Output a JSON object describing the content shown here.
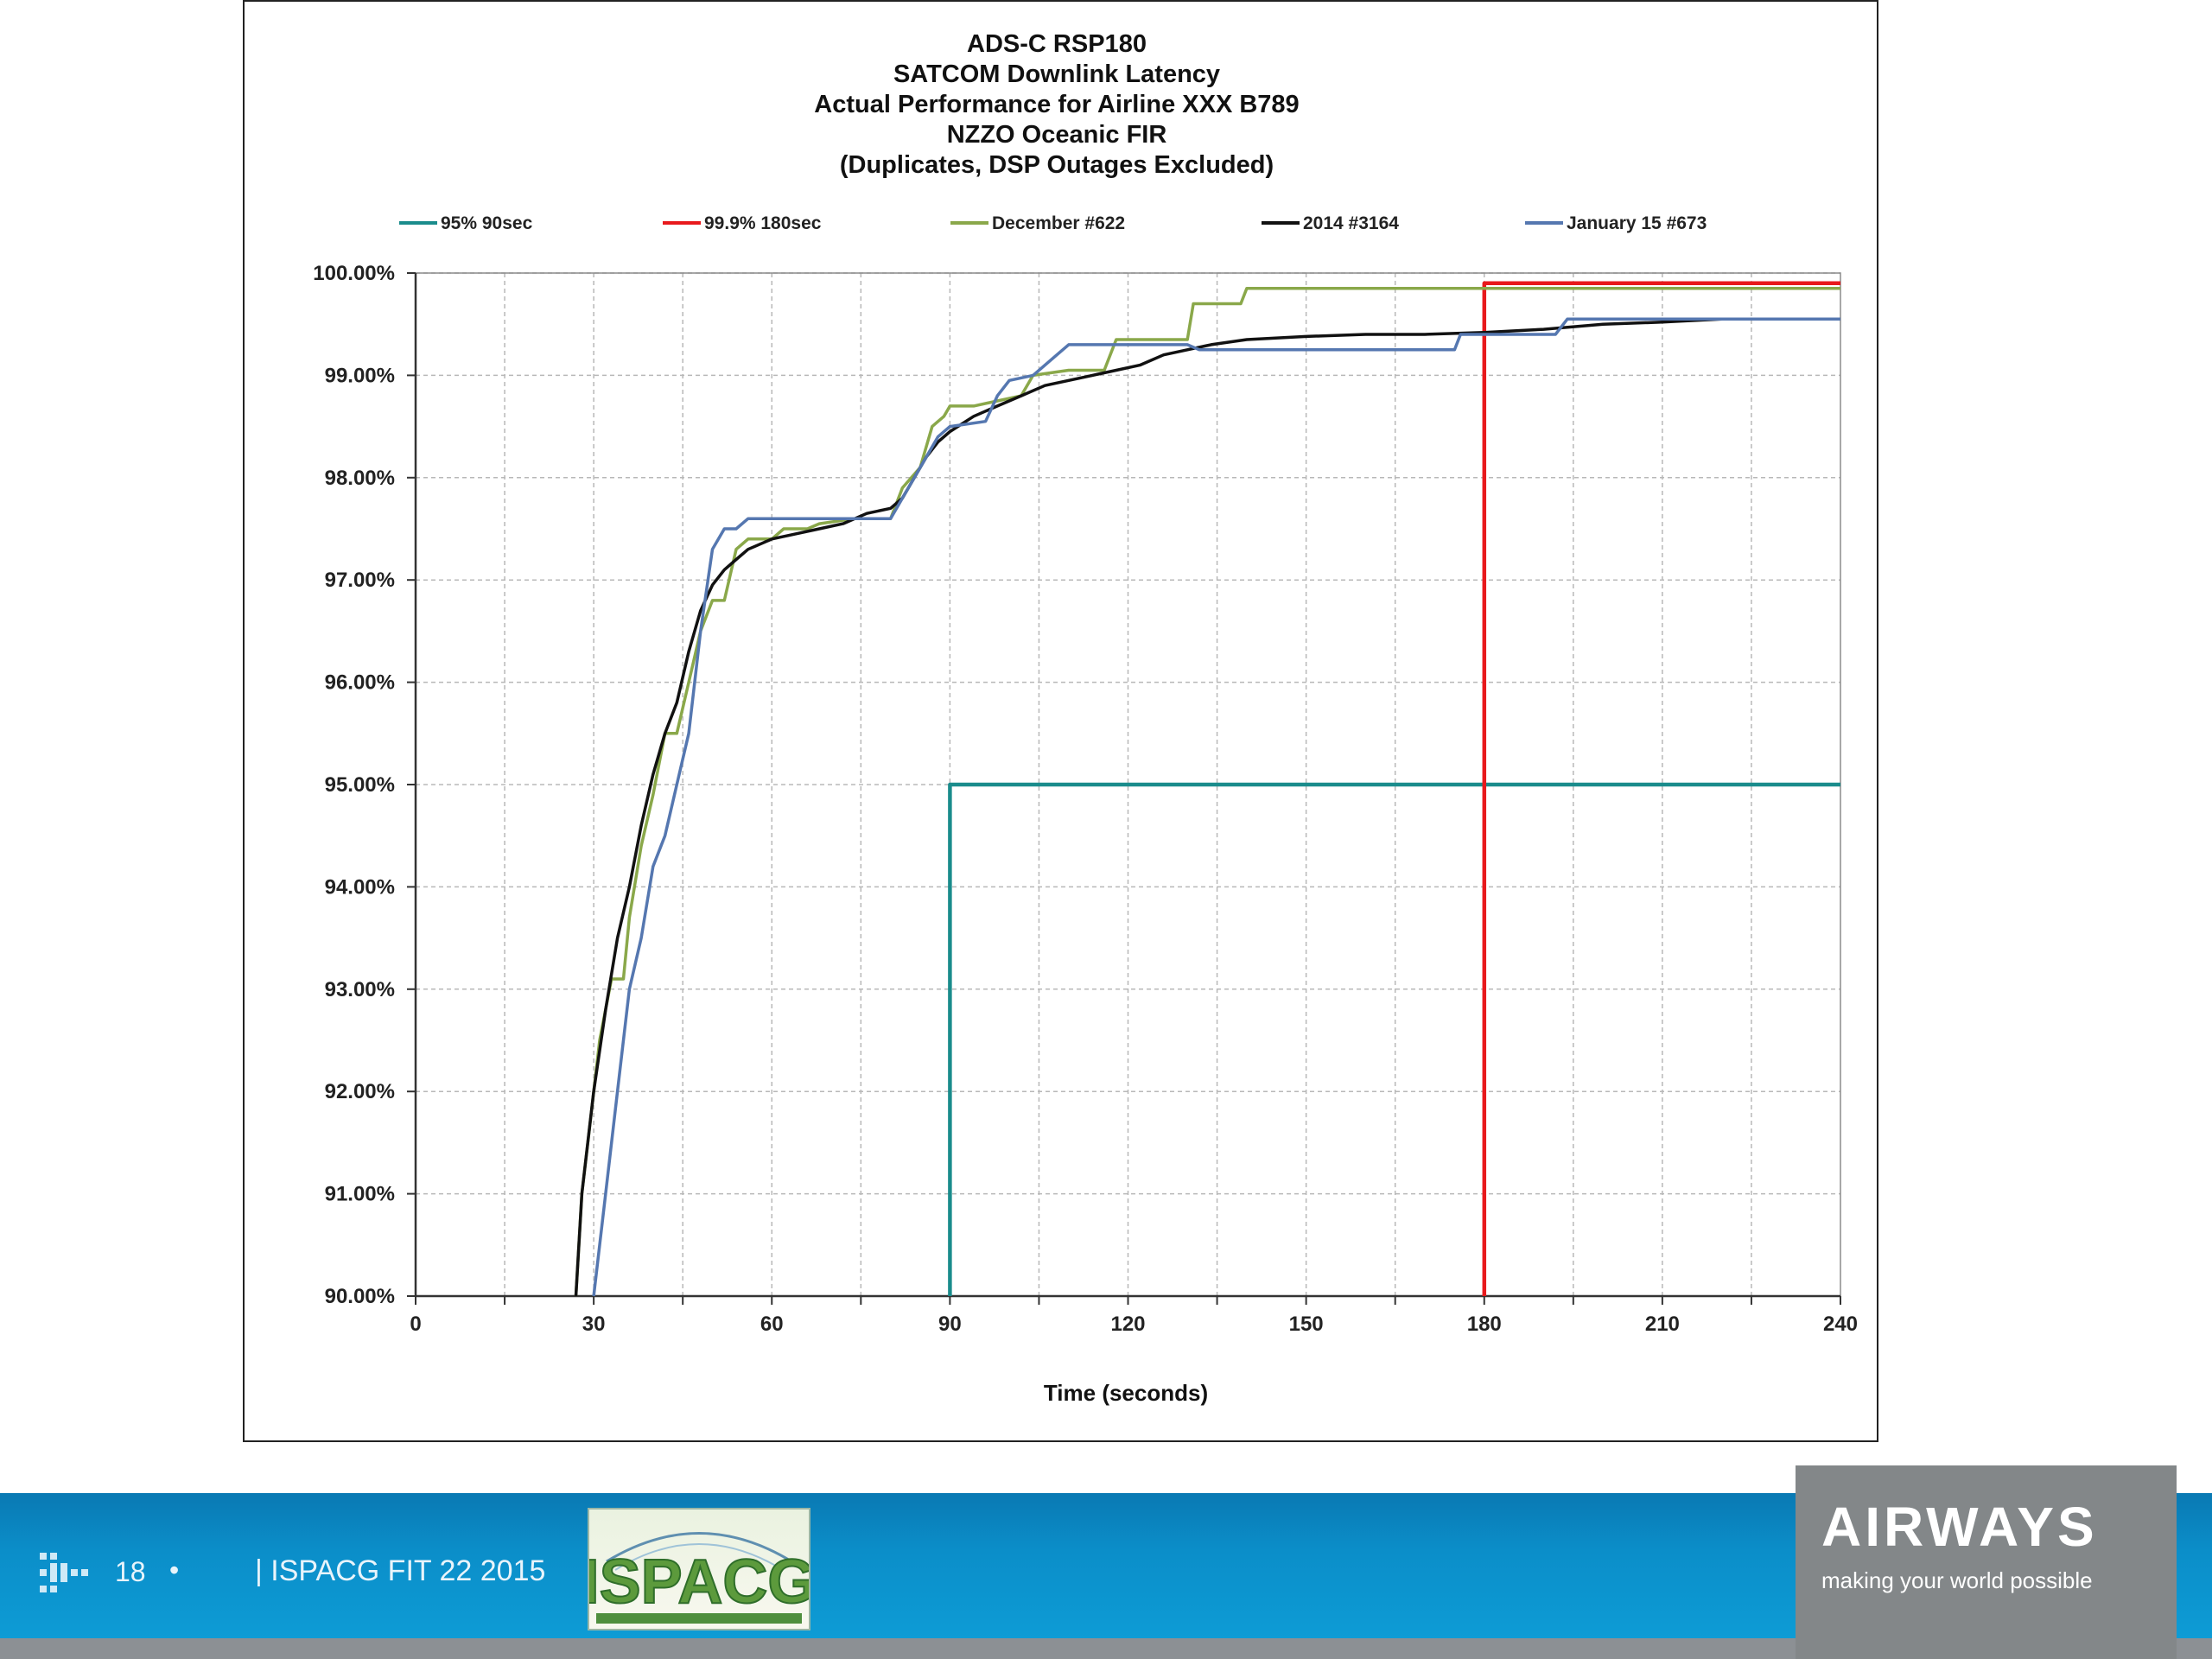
{
  "chart_data": {
    "type": "line",
    "title_lines": [
      "ADS-C RSP180",
      "SATCOM Downlink Latency",
      "Actual Performance for Airline XXX B789",
      "NZZO Oceanic FIR",
      "(Duplicates, DSP Outages Excluded)"
    ],
    "xlabel": "Time (seconds)",
    "ylabel": "",
    "xlim": [
      0,
      240
    ],
    "ylim": [
      90,
      100
    ],
    "x_ticks": [
      0,
      30,
      60,
      90,
      120,
      150,
      180,
      210,
      240
    ],
    "x_tick_labels": [
      "0",
      "30",
      "60",
      "90",
      "120",
      "150",
      "180",
      "210",
      "240"
    ],
    "x_minor_step": 15,
    "y_ticks": [
      90,
      91,
      92,
      93,
      94,
      95,
      96,
      97,
      98,
      99,
      100
    ],
    "y_tick_labels": [
      "90.00%",
      "91.00%",
      "92.00%",
      "93.00%",
      "94.00%",
      "95.00%",
      "96.00%",
      "97.00%",
      "98.00%",
      "99.00%",
      "100.00%"
    ],
    "grid": true,
    "legend_position": "top",
    "series": [
      {
        "name": "95% 90sec",
        "color": "#1a8c8c",
        "points": [
          [
            90,
            90
          ],
          [
            90,
            95
          ],
          [
            240,
            95
          ]
        ]
      },
      {
        "name": "99.9% 180sec",
        "color": "#e8191c",
        "points": [
          [
            180,
            90
          ],
          [
            180,
            99.9
          ],
          [
            240,
            99.9
          ]
        ]
      },
      {
        "name": "December #622",
        "color": "#8aa84a",
        "points": [
          [
            27,
            90
          ],
          [
            28,
            91
          ],
          [
            29,
            91.5
          ],
          [
            31,
            92.5
          ],
          [
            33,
            93.1
          ],
          [
            35,
            93.1
          ],
          [
            36,
            93.7
          ],
          [
            38,
            94.4
          ],
          [
            40,
            94.9
          ],
          [
            42,
            95.5
          ],
          [
            44,
            95.5
          ],
          [
            46,
            96.0
          ],
          [
            48,
            96.5
          ],
          [
            50,
            96.8
          ],
          [
            52,
            96.8
          ],
          [
            54,
            97.3
          ],
          [
            56,
            97.4
          ],
          [
            60,
            97.4
          ],
          [
            62,
            97.5
          ],
          [
            66,
            97.5
          ],
          [
            68,
            97.55
          ],
          [
            74,
            97.6
          ],
          [
            80,
            97.6
          ],
          [
            82,
            97.9
          ],
          [
            85,
            98.1
          ],
          [
            87,
            98.5
          ],
          [
            89,
            98.6
          ],
          [
            90,
            98.7
          ],
          [
            94,
            98.7
          ],
          [
            98,
            98.75
          ],
          [
            102,
            98.8
          ],
          [
            104,
            99.0
          ],
          [
            110,
            99.05
          ],
          [
            116,
            99.05
          ],
          [
            118,
            99.35
          ],
          [
            130,
            99.35
          ],
          [
            131,
            99.7
          ],
          [
            139,
            99.7
          ],
          [
            140,
            99.85
          ],
          [
            180,
            99.85
          ],
          [
            240,
            99.85
          ]
        ]
      },
      {
        "name": "2014 #3164",
        "color": "#111111",
        "points": [
          [
            27,
            90
          ],
          [
            28,
            91.0
          ],
          [
            30,
            92.0
          ],
          [
            32,
            92.8
          ],
          [
            34,
            93.5
          ],
          [
            36,
            94.0
          ],
          [
            38,
            94.6
          ],
          [
            40,
            95.1
          ],
          [
            42,
            95.5
          ],
          [
            44,
            95.8
          ],
          [
            46,
            96.3
          ],
          [
            48,
            96.7
          ],
          [
            50,
            96.95
          ],
          [
            52,
            97.1
          ],
          [
            54,
            97.2
          ],
          [
            56,
            97.3
          ],
          [
            58,
            97.35
          ],
          [
            60,
            97.4
          ],
          [
            64,
            97.45
          ],
          [
            68,
            97.5
          ],
          [
            72,
            97.55
          ],
          [
            76,
            97.65
          ],
          [
            80,
            97.7
          ],
          [
            82,
            97.8
          ],
          [
            84,
            98.0
          ],
          [
            86,
            98.2
          ],
          [
            88,
            98.35
          ],
          [
            90,
            98.45
          ],
          [
            94,
            98.6
          ],
          [
            98,
            98.7
          ],
          [
            102,
            98.8
          ],
          [
            106,
            98.9
          ],
          [
            110,
            98.95
          ],
          [
            114,
            99.0
          ],
          [
            118,
            99.05
          ],
          [
            122,
            99.1
          ],
          [
            126,
            99.2
          ],
          [
            130,
            99.25
          ],
          [
            134,
            99.3
          ],
          [
            140,
            99.35
          ],
          [
            150,
            99.38
          ],
          [
            160,
            99.4
          ],
          [
            170,
            99.4
          ],
          [
            180,
            99.42
          ],
          [
            190,
            99.45
          ],
          [
            200,
            99.5
          ],
          [
            210,
            99.52
          ],
          [
            220,
            99.55
          ],
          [
            230,
            99.55
          ],
          [
            240,
            99.55
          ]
        ]
      },
      {
        "name": "January 15 #673",
        "color": "#5577b0",
        "points": [
          [
            30,
            90
          ],
          [
            31,
            90.5
          ],
          [
            32,
            91.0
          ],
          [
            34,
            92.0
          ],
          [
            36,
            93.0
          ],
          [
            38,
            93.5
          ],
          [
            40,
            94.2
          ],
          [
            42,
            94.5
          ],
          [
            44,
            95.0
          ],
          [
            46,
            95.5
          ],
          [
            48,
            96.5
          ],
          [
            50,
            97.3
          ],
          [
            52,
            97.5
          ],
          [
            54,
            97.5
          ],
          [
            56,
            97.6
          ],
          [
            80,
            97.6
          ],
          [
            82,
            97.8
          ],
          [
            84,
            98.0
          ],
          [
            86,
            98.2
          ],
          [
            88,
            98.4
          ],
          [
            90,
            98.5
          ],
          [
            96,
            98.55
          ],
          [
            98,
            98.8
          ],
          [
            100,
            98.95
          ],
          [
            104,
            99.0
          ],
          [
            108,
            99.2
          ],
          [
            110,
            99.3
          ],
          [
            130,
            99.3
          ],
          [
            132,
            99.25
          ],
          [
            175,
            99.25
          ],
          [
            176,
            99.4
          ],
          [
            192,
            99.4
          ],
          [
            194,
            99.55
          ],
          [
            240,
            99.55
          ]
        ]
      }
    ]
  },
  "footer": {
    "page_number": "18",
    "bullet": "•",
    "text": "| ISPACG FIT 22 2015",
    "ispacg_logo_text": "ISPACG",
    "airways_wordmark": "AIRWAYS",
    "airways_tagline": "making your world possible"
  },
  "colors": {
    "footer_blue": "#0e9fd8",
    "airways_grey": "#838789"
  }
}
